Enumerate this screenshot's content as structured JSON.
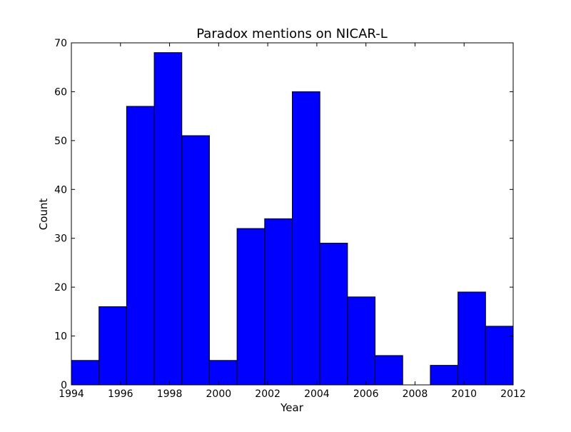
{
  "chart_data": {
    "type": "bar",
    "title": "Paradox mentions on NICAR-L",
    "xlabel": "Year",
    "ylabel": "Count",
    "xlim": [
      1994,
      2012
    ],
    "ylim": [
      0,
      70
    ],
    "xticks": [
      "1994",
      "1996",
      "1998",
      "2000",
      "2002",
      "2004",
      "2006",
      "2008",
      "2010",
      "2012"
    ],
    "yticks": [
      "0",
      "10",
      "20",
      "30",
      "40",
      "50",
      "60",
      "70"
    ],
    "bin_edges": [
      1994,
      1995.125,
      1996.25,
      1997.375,
      1998.5,
      1999.625,
      2000.75,
      2001.875,
      2003,
      2004.125,
      2005.25,
      2006.375,
      2007.5,
      2008.625,
      2009.75,
      2010.875,
      2012
    ],
    "values": [
      5,
      16,
      57,
      68,
      51,
      5,
      32,
      34,
      60,
      29,
      18,
      6,
      0,
      4,
      19,
      12
    ],
    "bar_color": "#0000ff",
    "edge_color": "#000000",
    "grid": false
  }
}
